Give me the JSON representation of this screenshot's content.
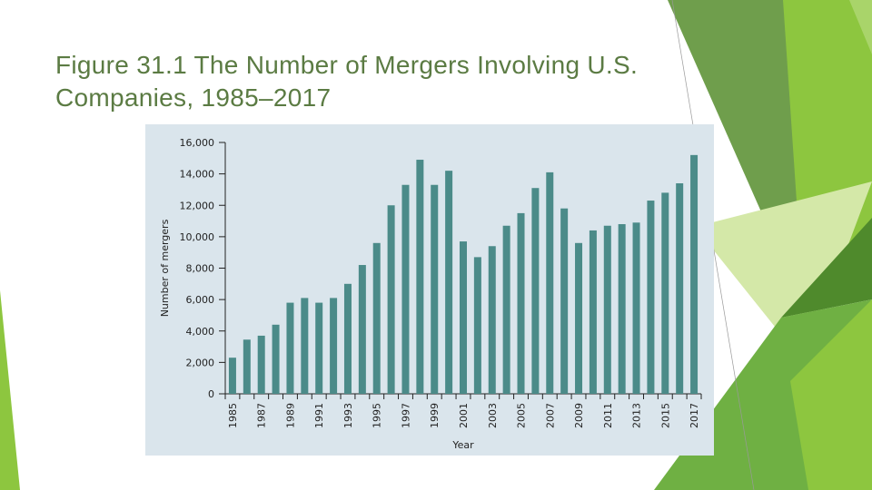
{
  "chart_data": {
    "type": "bar",
    "title": "Figure 31.1 The Number of Mergers Involving U.S. Companies, 1985–2017",
    "x_label": "Year",
    "y_label": "Number of mergers",
    "categories": [
      "1985",
      null,
      "1987",
      null,
      "1989",
      null,
      "1991",
      null,
      "1993",
      null,
      "1995",
      null,
      "1997",
      null,
      "1999",
      null,
      "2001",
      null,
      "2003",
      null,
      "2005",
      null,
      "2007",
      null,
      "2009",
      null,
      "2011",
      null,
      "2013",
      null,
      "2015",
      null,
      "2017"
    ],
    "values": [
      2300,
      3450,
      3700,
      4400,
      5800,
      6100,
      5800,
      6100,
      7000,
      8200,
      9600,
      12000,
      13300,
      14900,
      13300,
      14200,
      9700,
      8700,
      9400,
      10700,
      11500,
      13100,
      14100,
      11800,
      9600,
      10400,
      10700,
      10800,
      10900,
      12300,
      12800,
      13400,
      15200
    ],
    "color": "#4b8b89",
    "ylim": [
      0,
      16000
    ],
    "yticks": [
      0,
      {
        "value": 2000,
        "label": "2,000"
      },
      {
        "value": 4000,
        "label": "4,000"
      },
      {
        "value": 6000,
        "label": "6,000"
      },
      {
        "value": 8000,
        "label": "8,000"
      },
      {
        "value": 10000,
        "label": "10,000"
      },
      {
        "value": 12000,
        "label": "12,000"
      },
      {
        "value": 14000,
        "label": "14,000"
      },
      {
        "value": 16000,
        "label": "16,000"
      }
    ],
    "grid": false
  }
}
